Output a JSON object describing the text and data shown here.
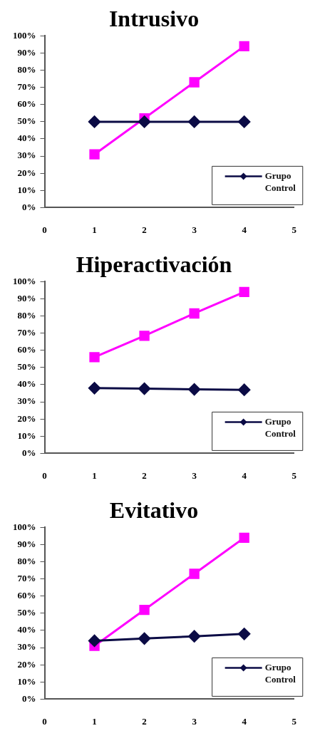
{
  "chart_data": [
    {
      "type": "line",
      "title": "Intrusivo",
      "x": [
        1,
        2,
        3,
        4
      ],
      "xlim": [
        0,
        5
      ],
      "xticks": [
        0,
        1,
        2,
        3,
        4,
        5
      ],
      "ylim": [
        0,
        100
      ],
      "yticks": [
        {
          "value": 0,
          "label": "0%"
        },
        {
          "value": 10,
          "label": "10%"
        },
        {
          "value": 20,
          "label": "20%"
        },
        {
          "value": 30,
          "label": "30%"
        },
        {
          "value": 40,
          "label": "40%"
        },
        {
          "value": 50,
          "label": "50%"
        },
        {
          "value": 60,
          "label": "60%"
        },
        {
          "value": 70,
          "label": "70%"
        },
        {
          "value": 80,
          "label": "80%"
        },
        {
          "value": 90,
          "label": "90%"
        },
        {
          "value": 100,
          "label": "100%"
        }
      ],
      "grid": false,
      "legend": "bottom right",
      "series": [
        {
          "name": "Grupo Control",
          "color": "#0b0b45",
          "marker": "diamond",
          "values": [
            50,
            50,
            50,
            50
          ]
        },
        {
          "color": "#ff00ff",
          "marker": "square",
          "values": [
            31,
            52,
            73,
            94
          ]
        }
      ]
    },
    {
      "type": "line",
      "title": "Hiperactivación",
      "x": [
        1,
        2,
        3,
        4
      ],
      "xlim": [
        0,
        5
      ],
      "xticks": [
        0,
        1,
        2,
        3,
        4,
        5
      ],
      "ylim": [
        0,
        100
      ],
      "yticks": [
        {
          "value": 0,
          "label": "0%"
        },
        {
          "value": 10,
          "label": "10%"
        },
        {
          "value": 20,
          "label": "20%"
        },
        {
          "value": 30,
          "label": "30%"
        },
        {
          "value": 40,
          "label": "40%"
        },
        {
          "value": 50,
          "label": "50%"
        },
        {
          "value": 60,
          "label": "60%"
        },
        {
          "value": 70,
          "label": "70%"
        },
        {
          "value": 80,
          "label": "80%"
        },
        {
          "value": 90,
          "label": "90%"
        },
        {
          "value": 100,
          "label": "100%"
        }
      ],
      "grid": false,
      "legend": "bottom right",
      "series": [
        {
          "name": "Grupo Control",
          "color": "#0b0b45",
          "marker": "diamond",
          "values": [
            38,
            37.7,
            37.3,
            37
          ]
        },
        {
          "color": "#ff00ff",
          "marker": "square",
          "values": [
            56,
            68.5,
            81.5,
            94
          ]
        }
      ]
    },
    {
      "type": "line",
      "title": "Evitativo",
      "x": [
        1,
        2,
        3,
        4
      ],
      "xlim": [
        0,
        5
      ],
      "xticks": [
        0,
        1,
        2,
        3,
        4,
        5
      ],
      "ylim": [
        0,
        100
      ],
      "yticks": [
        {
          "value": 0,
          "label": "0%"
        },
        {
          "value": 10,
          "label": "10%"
        },
        {
          "value": 20,
          "label": "20%"
        },
        {
          "value": 30,
          "label": "30%"
        },
        {
          "value": 40,
          "label": "40%"
        },
        {
          "value": 50,
          "label": "50%"
        },
        {
          "value": 60,
          "label": "60%"
        },
        {
          "value": 70,
          "label": "70%"
        },
        {
          "value": 80,
          "label": "80%"
        },
        {
          "value": 90,
          "label": "90%"
        },
        {
          "value": 100,
          "label": "100%"
        }
      ],
      "grid": false,
      "legend": "bottom right",
      "series": [
        {
          "name": "Grupo Control",
          "color": "#0b0b45",
          "marker": "diamond",
          "values": [
            34,
            35.3,
            36.6,
            38
          ]
        },
        {
          "color": "#ff00ff",
          "marker": "square",
          "values": [
            31,
            52,
            73,
            94
          ]
        }
      ]
    }
  ]
}
